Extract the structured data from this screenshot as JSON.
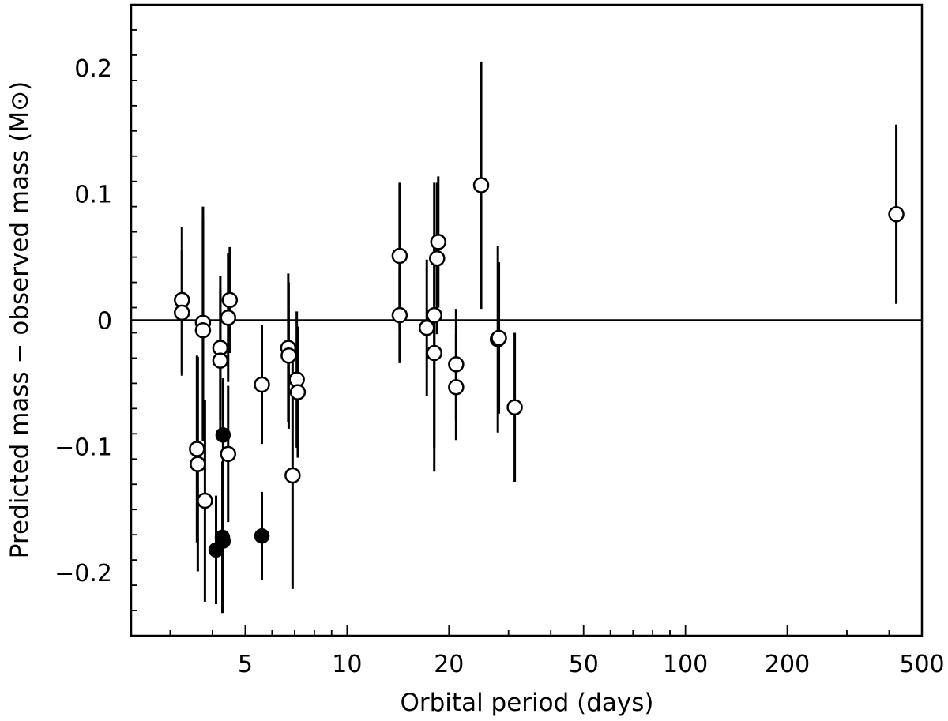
{
  "chart_data": {
    "type": "scatter",
    "title": "",
    "xlabel": "Orbital period (days)",
    "ylabel": "Predicted mass − observed mass (M⊙)",
    "xscale": "log",
    "xlim": [
      2.3,
      500
    ],
    "ylim": [
      -0.25,
      0.25
    ],
    "grid": false,
    "legend": "none",
    "reference_line_y": 0,
    "x_ticks": [
      {
        "value": 5,
        "label": "5"
      },
      {
        "value": 10,
        "label": "10"
      },
      {
        "value": 20,
        "label": "20"
      },
      {
        "value": 50,
        "label": "50"
      },
      {
        "value": 100,
        "label": "100"
      },
      {
        "value": 200,
        "label": "200"
      },
      {
        "value": 500,
        "label": "500"
      }
    ],
    "y_ticks": [
      {
        "value": -0.2,
        "label": "−0.2"
      },
      {
        "value": -0.1,
        "label": "−0.1"
      },
      {
        "value": 0,
        "label": "0"
      },
      {
        "value": 0.1,
        "label": "0.1"
      },
      {
        "value": 0.2,
        "label": "0.2"
      }
    ],
    "series": [
      {
        "marker": "open-circle",
        "points": [
          {
            "x": 3.25,
            "y": 0.016,
            "err": 0.058
          },
          {
            "x": 3.25,
            "y": 0.006,
            "err": 0.05
          },
          {
            "x": 3.6,
            "y": -0.102,
            "err": 0.074
          },
          {
            "x": 3.62,
            "y": -0.114,
            "err": 0.085
          },
          {
            "x": 3.75,
            "y": -0.002,
            "err": 0.092
          },
          {
            "x": 3.75,
            "y": -0.008,
            "err": 0.088
          },
          {
            "x": 3.8,
            "y": -0.143,
            "err": 0.08
          },
          {
            "x": 4.22,
            "y": -0.022,
            "err": 0.057
          },
          {
            "x": 4.22,
            "y": -0.032,
            "err": 0.057
          },
          {
            "x": 4.45,
            "y": -0.106,
            "err": 0.054
          },
          {
            "x": 4.45,
            "y": 0.002,
            "err": 0.051
          },
          {
            "x": 4.5,
            "y": 0.016,
            "err": 0.042
          },
          {
            "x": 5.6,
            "y": -0.051,
            "err": 0.047
          },
          {
            "x": 6.7,
            "y": -0.022,
            "err": 0.059
          },
          {
            "x": 6.72,
            "y": -0.028,
            "err": 0.058
          },
          {
            "x": 6.9,
            "y": -0.123,
            "err": 0.09
          },
          {
            "x": 7.1,
            "y": -0.047,
            "err": 0.054
          },
          {
            "x": 7.15,
            "y": -0.057,
            "err": 0.052
          },
          {
            "x": 14.3,
            "y": 0.051,
            "err": 0.058
          },
          {
            "x": 14.3,
            "y": 0.004,
            "err": 0.038
          },
          {
            "x": 17.2,
            "y": -0.006,
            "err": 0.054
          },
          {
            "x": 18.1,
            "y": 0.004,
            "err": 0.105
          },
          {
            "x": 18.1,
            "y": -0.026,
            "err": 0.094
          },
          {
            "x": 18.45,
            "y": 0.049,
            "err": 0.06
          },
          {
            "x": 18.6,
            "y": 0.062,
            "err": 0.052
          },
          {
            "x": 21.0,
            "y": -0.035,
            "err": 0.044
          },
          {
            "x": 21.0,
            "y": -0.053,
            "err": 0.042
          },
          {
            "x": 24.9,
            "y": 0.107,
            "err": 0.098
          },
          {
            "x": 27.9,
            "y": -0.015,
            "err": 0.074
          },
          {
            "x": 28.1,
            "y": -0.014,
            "err": 0.06
          },
          {
            "x": 31.3,
            "y": -0.069,
            "err": 0.059
          },
          {
            "x": 420,
            "y": 0.084,
            "err": 0.071
          }
        ]
      },
      {
        "marker": "filled-circle",
        "points": [
          {
            "x": 4.1,
            "y": -0.182,
            "err": 0.043
          },
          {
            "x": 4.28,
            "y": -0.172,
            "err": 0.06
          },
          {
            "x": 4.3,
            "y": -0.175,
            "err": 0.055
          },
          {
            "x": 4.3,
            "y": -0.091,
            "err": 0.045
          },
          {
            "x": 5.6,
            "y": -0.171,
            "err": 0.035
          }
        ]
      }
    ]
  }
}
